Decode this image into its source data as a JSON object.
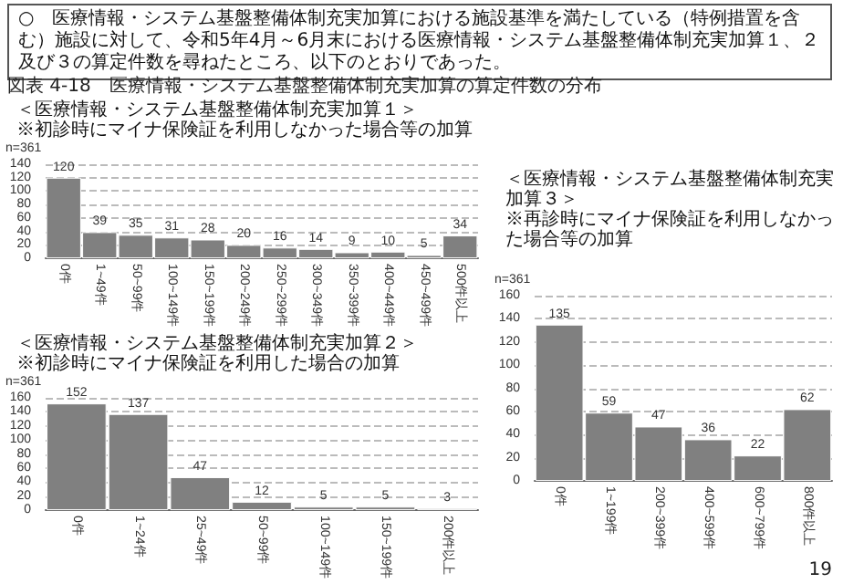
{
  "chart_data": [
    {
      "type": "bar",
      "title": "＜医療情報・システム基盤整備体制充実加算１＞",
      "subtitle": "※初診時にマイナ保険証を利用しなかった場合等の加算",
      "annotations": [
        "n=361",
        "○　医療情報・システム基盤整備体制充実加算における施設基準を満たしている（特例措置を含む）施設に対して、令和5年4月～6月末における医療情報・システム基盤整備体制充実加算１、２及び３の算定件数を尋ねたところ、以下のとおりであった。",
        "図表 4-18　医療情報・システム基盤整備体制充実加算の算定件数の分布",
        "19"
      ],
      "categories": [
        "0件",
        "1~49件",
        "50~99件",
        "100~149件",
        "150~199件",
        "200~249件",
        "250~299件",
        "300~349件",
        "350~399件",
        "400~449件",
        "450~499件",
        "500件以上"
      ],
      "values": [
        120,
        39,
        35,
        31,
        28,
        20,
        16,
        14,
        9,
        10,
        5,
        34
      ],
      "color": "#808080",
      "ylim": [
        0,
        140
      ],
      "yticks": [
        0,
        20,
        40,
        60,
        80,
        100,
        120,
        140
      ],
      "grid": "y",
      "data_labels": true
    },
    {
      "type": "bar",
      "title": "＜医療情報・システム基盤整備体制充実加算２＞",
      "subtitle": "※初診時にマイナ保険証を利用した場合の加算",
      "annotations": [
        "n=361"
      ],
      "categories": [
        "0件",
        "1~24件",
        "25~49件",
        "50~99件",
        "100~149件",
        "150~199件",
        "200件以上"
      ],
      "values": [
        152,
        137,
        47,
        12,
        5,
        5,
        3
      ],
      "color": "#808080",
      "ylim": [
        0,
        160
      ],
      "yticks": [
        0,
        20,
        40,
        60,
        80,
        100,
        120,
        140,
        160
      ],
      "grid": "y",
      "data_labels": true
    },
    {
      "type": "bar",
      "title": "＜医療情報・システム基盤整備体制充実加算３＞",
      "subtitle": "※再診時にマイナ保険証を利用しなかった場合等の加算",
      "annotations": [
        "n=361"
      ],
      "categories": [
        "0件",
        "1~199件",
        "200~399件",
        "400~599件",
        "600~799件",
        "800件以上"
      ],
      "values": [
        135,
        59,
        47,
        36,
        22,
        62
      ],
      "color": "#808080",
      "ylim": [
        0,
        160
      ],
      "yticks": [
        0,
        20,
        40,
        60,
        80,
        100,
        120,
        140,
        160
      ],
      "grid": "y",
      "data_labels": true
    }
  ]
}
